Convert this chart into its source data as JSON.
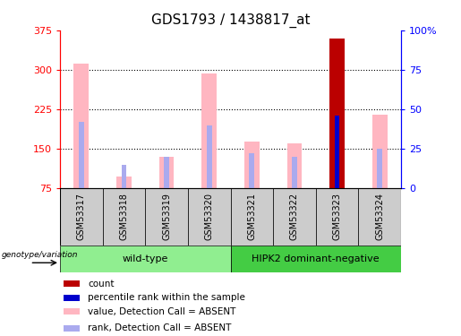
{
  "title": "GDS1793 / 1438817_at",
  "samples": [
    "GSM53317",
    "GSM53318",
    "GSM53319",
    "GSM53320",
    "GSM53321",
    "GSM53322",
    "GSM53323",
    "GSM53324"
  ],
  "bar_bottom": 75,
  "ylim_left": [
    75,
    375
  ],
  "ylim_right": [
    0,
    100
  ],
  "yticks_left": [
    75,
    150,
    225,
    300,
    375
  ],
  "ytick_labels_left": [
    "75",
    "150",
    "225",
    "300",
    "375"
  ],
  "yticks_right": [
    0,
    25,
    50,
    75,
    100
  ],
  "ytick_labels_right": [
    "0",
    "25",
    "50",
    "75",
    "100%"
  ],
  "values": [
    312,
    97,
    135,
    293,
    163,
    160,
    360,
    215
  ],
  "ranks_pct": [
    42,
    15,
    20,
    40,
    22,
    20,
    46,
    25
  ],
  "pink_color": "#FFB6C1",
  "rank_bar_color": "#AAAAEE",
  "count_color": "#BB0000",
  "percentile_color": "#0000CC",
  "background_color": "#FFFFFF",
  "legend_items": [
    {
      "color": "#BB0000",
      "label": "count"
    },
    {
      "color": "#0000CC",
      "label": "percentile rank within the sample"
    },
    {
      "color": "#FFB6C1",
      "label": "value, Detection Call = ABSENT"
    },
    {
      "color": "#AAAAEE",
      "label": "rank, Detection Call = ABSENT"
    }
  ],
  "genotype_label": "genotype/variation",
  "wt_color": "#90EE90",
  "dn_color": "#44CC44",
  "special_sample_idx": 6,
  "special_value": 360,
  "special_rank_pct": 46
}
